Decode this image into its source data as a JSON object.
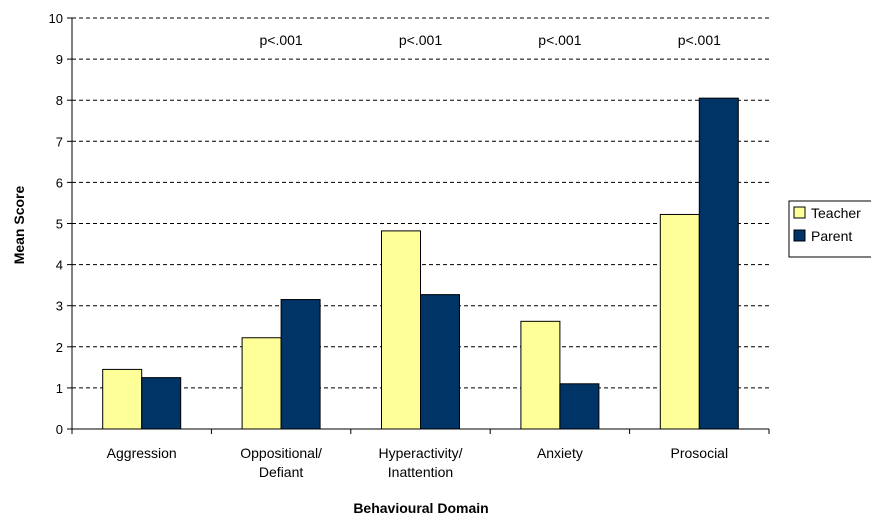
{
  "chart_data": {
    "type": "bar",
    "categories": [
      [
        "Aggression"
      ],
      [
        "Oppositional/",
        "Defiant"
      ],
      [
        "Hyperactivity/",
        "Inattention"
      ],
      [
        "Anxiety"
      ],
      [
        "Prosocial"
      ]
    ],
    "series": [
      {
        "name": "Teacher",
        "values": [
          1.45,
          2.22,
          4.82,
          2.62,
          5.22
        ],
        "color": "#FFFF99"
      },
      {
        "name": "Parent",
        "values": [
          1.25,
          3.15,
          3.27,
          1.1,
          8.05
        ],
        "color": "#003366"
      }
    ],
    "annotations": [
      "",
      "p<.001",
      "p<.001",
      "p<.001",
      "p<.001"
    ],
    "xlabel": "Behavioural Domain",
    "ylabel": "Mean Score",
    "ylim": [
      0,
      10
    ],
    "yticks": [
      0,
      1,
      2,
      3,
      4,
      5,
      6,
      7,
      8,
      9,
      10
    ],
    "grid": "dashed horizontal",
    "legend": "right"
  }
}
